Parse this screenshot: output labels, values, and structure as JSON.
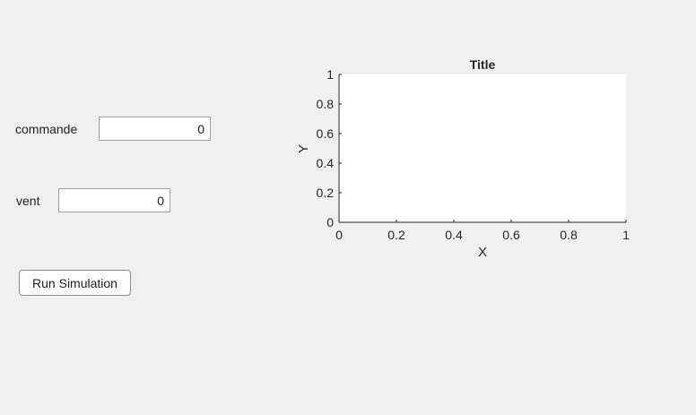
{
  "controls": {
    "commande": {
      "label": "commande",
      "value": "0"
    },
    "vent": {
      "label": "vent",
      "value": "0"
    },
    "run_button_label": "Run Simulation"
  },
  "chart_data": {
    "type": "line",
    "title": "Title",
    "xlabel": "X",
    "ylabel": "Y",
    "xlim": [
      0,
      1
    ],
    "ylim": [
      0,
      1
    ],
    "xticks": [
      "0",
      "0.2",
      "0.4",
      "0.6",
      "0.8",
      "1"
    ],
    "yticks": [
      "0",
      "0.2",
      "0.4",
      "0.6",
      "0.8",
      "1"
    ],
    "series": [],
    "grid": false
  }
}
